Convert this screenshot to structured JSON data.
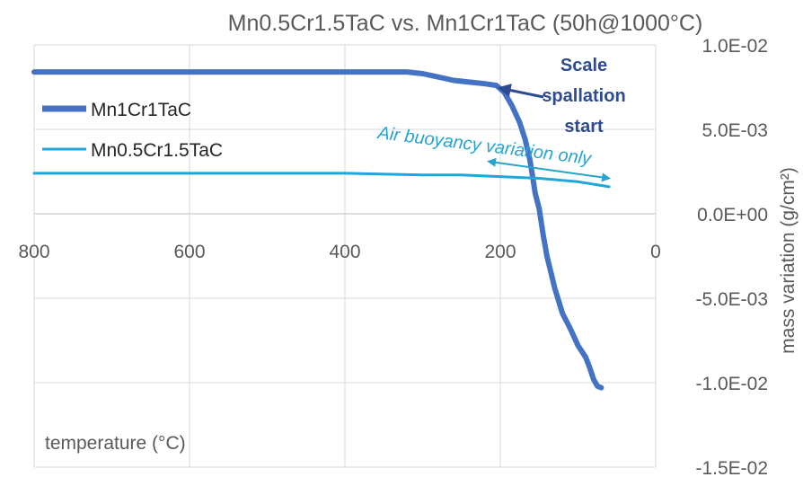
{
  "chart_data": {
    "type": "line",
    "title": "Mn0.5Cr1.5TaC vs. Mn1Cr1TaC (50h@1000°C)",
    "xlabel": "temperature (°C)",
    "ylabel": "mass variation (g/cm²)",
    "xlim": [
      800,
      0
    ],
    "x_reversed": true,
    "ylim": [
      -0.015,
      0.01
    ],
    "x_ticks": [
      "800",
      "600",
      "400",
      "200",
      "0"
    ],
    "y_ticks": [
      "1.0E-02",
      "5.0E-03",
      "0.0E+00",
      "-5.0E-03",
      "-1.0E-02",
      "-1.5E-02"
    ],
    "grid": "vertical and horizontal",
    "legend_position": "left",
    "series": [
      {
        "name": "Mn1Cr1TaC",
        "color": "#4472c4",
        "x": [
          800,
          700,
          600,
          500,
          400,
          320,
          300,
          280,
          260,
          240,
          220,
          205,
          195,
          185,
          175,
          168,
          162,
          158,
          155,
          150,
          145,
          140,
          130,
          120,
          110,
          100,
          90,
          85,
          80,
          75,
          70
        ],
        "y": [
          0.0084,
          0.0084,
          0.0084,
          0.0084,
          0.0084,
          0.0084,
          0.0083,
          0.0081,
          0.0079,
          0.0078,
          0.0077,
          0.0076,
          0.0072,
          0.0064,
          0.0054,
          0.0044,
          0.0032,
          0.0021,
          0.0012,
          0.0003,
          -0.0012,
          -0.0025,
          -0.0044,
          -0.0059,
          -0.0068,
          -0.0078,
          -0.0085,
          -0.0091,
          -0.0098,
          -0.0102,
          -0.0103
        ]
      },
      {
        "name": "Mn0.5Cr1.5TaC",
        "color": "#1fa6dc",
        "x": [
          800,
          700,
          600,
          500,
          400,
          300,
          250,
          200,
          150,
          100,
          60
        ],
        "y": [
          0.0024,
          0.0024,
          0.0024,
          0.0024,
          0.0024,
          0.0023,
          0.0023,
          0.0022,
          0.0021,
          0.0019,
          0.0016
        ]
      }
    ],
    "annotations": [
      {
        "text_lines": [
          "Scale",
          "spallation",
          "start"
        ],
        "color": "#2f4b8f",
        "points_to": {
          "x": 205,
          "y": 0.0076
        }
      },
      {
        "text": "Air buoyancy variation only",
        "color": "#27a3d0",
        "arrow_from": {
          "x": 215,
          "y": 0.0031
        },
        "arrow_to": {
          "x": 60,
          "y": 0.0021
        }
      }
    ]
  }
}
